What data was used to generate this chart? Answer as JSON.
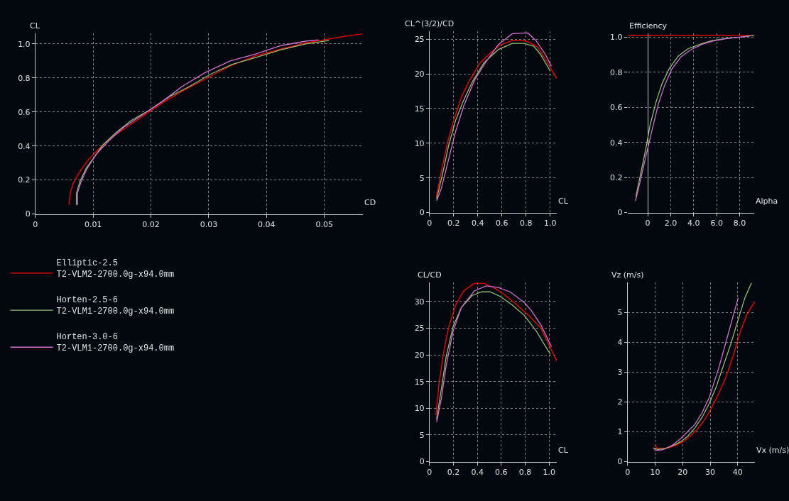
{
  "chart_data": [
    {
      "type": "line",
      "xlabel": "CD",
      "ylabel": "CL",
      "xlim": [
        0,
        0.0567
      ],
      "ylim": [
        0,
        1.06
      ],
      "xticks": [
        0,
        0.01,
        0.02,
        0.03,
        0.04,
        0.05
      ],
      "yticks": [
        0,
        0.2,
        0.4,
        0.6,
        0.8,
        {
          "value": 1.0,
          "label": "1.0"
        }
      ],
      "grid": true,
      "legend": "bottom",
      "series": [
        {
          "name": "Elliptic-2.5\nT2-VLM2-2700.0g-x94.0mm",
          "color": "#ff0000",
          "x": [
            0.00582,
            0.006,
            0.0066,
            0.0079,
            0.0092,
            0.0109,
            0.0131,
            0.0158,
            0.0188,
            0.0223,
            0.0258,
            0.0298,
            0.0337,
            0.0381,
            0.0425,
            0.0468,
            0.05,
            0.0534,
            0.0567
          ],
          "values": [
            0.053,
            0.12,
            0.185,
            0.26,
            0.32,
            0.38,
            0.45,
            0.51,
            0.58,
            0.66,
            0.73,
            0.8,
            0.87,
            0.93,
            0.97,
            1.006,
            1.024,
            1.044,
            1.06
          ]
        },
        {
          "name": "Horten-2.5-6\nT2-VLM1-2700.0g-x94.0mm",
          "color": "#90c070",
          "x": [
            0.0071,
            0.0071,
            0.0077,
            0.0088,
            0.0101,
            0.0118,
            0.014,
            0.0166,
            0.0197,
            0.0232,
            0.0267,
            0.0302,
            0.0341,
            0.0381,
            0.0425,
            0.0468,
            0.0508
          ],
          "values": [
            0.053,
            0.12,
            0.19,
            0.27,
            0.33,
            0.41,
            0.48,
            0.55,
            0.61,
            0.69,
            0.75,
            0.82,
            0.88,
            0.92,
            0.965,
            1.0,
            1.02
          ]
        },
        {
          "name": "Horten-3.0-6\nT2-VLM1-2700.0g-x94.0mm",
          "color": "#d070d0",
          "x": [
            0.0073,
            0.0073,
            0.0079,
            0.009,
            0.0105,
            0.0127,
            0.0153,
            0.0184,
            0.0219,
            0.0254,
            0.0293,
            0.0337,
            0.0381,
            0.0425,
            0.0468,
            0.049
          ],
          "values": [
            0.053,
            0.126,
            0.19,
            0.27,
            0.35,
            0.43,
            0.51,
            0.58,
            0.66,
            0.75,
            0.83,
            0.9,
            0.94,
            0.99,
            1.016,
            1.024
          ]
        }
      ]
    },
    {
      "type": "line",
      "xlabel": "CL",
      "ylabel": "CL^(3/2)/CD",
      "xlim": [
        0,
        1.055
      ],
      "ylim": [
        0,
        26.2
      ],
      "xticks": [
        0,
        0.2,
        0.4,
        0.6,
        0.8,
        {
          "value": 1.0,
          "label": "1.0"
        }
      ],
      "yticks": [
        0,
        5,
        10,
        15,
        20,
        25
      ],
      "grid": true,
      "series": [
        {
          "color": "#ff0000",
          "x": [
            0.055,
            0.098,
            0.147,
            0.2,
            0.265,
            0.333,
            0.42,
            0.51,
            0.59,
            0.686,
            0.784,
            0.843,
            0.9,
            0.98,
            1.055
          ],
          "values": [
            2.2,
            5.9,
            10.0,
            13.3,
            16.7,
            19.1,
            21.6,
            23.1,
            24.2,
            24.8,
            24.8,
            24.4,
            23.8,
            21.5,
            19.3
          ]
        },
        {
          "color": "#90c070",
          "x": [
            0.059,
            0.108,
            0.157,
            0.216,
            0.275,
            0.353,
            0.451,
            0.569,
            0.686,
            0.784,
            0.863,
            0.92,
            1.0
          ],
          "values": [
            1.9,
            5.6,
            9.6,
            13.3,
            15.9,
            18.8,
            21.6,
            23.5,
            24.4,
            24.4,
            24.0,
            22.8,
            20.4
          ]
        },
        {
          "color": "#d070d0",
          "x": [
            0.059,
            0.098,
            0.147,
            0.216,
            0.284,
            0.373,
            0.451,
            0.569,
            0.686,
            0.814,
            0.882,
            0.96,
            1.01
          ],
          "values": [
            1.7,
            3.5,
            6.9,
            11.7,
            15.4,
            19.1,
            21.3,
            24.2,
            25.8,
            25.9,
            24.8,
            22.8,
            21.1
          ]
        }
      ]
    },
    {
      "type": "line",
      "xlabel": "Alpha",
      "ylabel": "Efficiency",
      "xlim": [
        -1.75,
        9.28
      ],
      "ylim": [
        0,
        1.02
      ],
      "xticks": [
        0,
        {
          "value": 2,
          "label": "2.0"
        },
        {
          "value": 4,
          "label": "4.0"
        },
        {
          "value": 6,
          "label": "6.0"
        },
        {
          "value": 8,
          "label": "8.0"
        }
      ],
      "yticks": [
        0,
        0.2,
        0.4,
        0.6,
        0.8,
        {
          "value": 1.0,
          "label": "1.0"
        }
      ],
      "grid": true,
      "series": [
        {
          "color": "#ff0000",
          "x": [
            -1.75,
            0,
            2,
            4,
            6,
            8,
            9.0
          ],
          "values": [
            1.01,
            1.01,
            1.01,
            1.01,
            1.01,
            1.01,
            1.01
          ]
        },
        {
          "color": "#90c070",
          "x": [
            -1.03,
            -0.62,
            -0.21,
            0.21,
            0.72,
            1.24,
            1.86,
            2.68,
            3.5,
            4.54,
            5.57,
            6.8,
            8.04,
            9.28
          ],
          "values": [
            0.093,
            0.22,
            0.35,
            0.5,
            0.63,
            0.735,
            0.82,
            0.894,
            0.934,
            0.96,
            0.98,
            0.993,
            1.0,
            1.01
          ]
        },
        {
          "color": "#d070d0",
          "x": [
            -1.07,
            -0.62,
            -0.1,
            0.41,
            0.93,
            1.44,
            2.06,
            2.89,
            3.71,
            4.74,
            5.77,
            7.0,
            8.87
          ],
          "values": [
            0.066,
            0.19,
            0.34,
            0.48,
            0.62,
            0.72,
            0.815,
            0.887,
            0.927,
            0.96,
            0.98,
            0.993,
            1.007
          ]
        }
      ]
    },
    {
      "type": "line",
      "xlabel": "CL",
      "ylabel": "CL/CD",
      "xlim": [
        0,
        1.065
      ],
      "ylim": [
        0,
        33.5
      ],
      "xticks": [
        0,
        0.2,
        0.4,
        0.6,
        0.8,
        {
          "value": 1.0,
          "label": "1.0"
        }
      ],
      "yticks": [
        0,
        5,
        10,
        15,
        20,
        25,
        30
      ],
      "grid": true,
      "series": [
        {
          "color": "#ff0000",
          "x": [
            0.053,
            0.079,
            0.119,
            0.158,
            0.218,
            0.287,
            0.376,
            0.455,
            0.535,
            0.614,
            0.733,
            0.851,
            0.931,
            1.065
          ],
          "values": [
            8.7,
            14.5,
            20.6,
            25.0,
            29.3,
            32.0,
            33.4,
            33.4,
            32.6,
            31.5,
            29.3,
            26.9,
            25.0,
            18.8
          ]
        },
        {
          "color": "#90c070",
          "x": [
            0.059,
            0.099,
            0.139,
            0.198,
            0.267,
            0.356,
            0.436,
            0.505,
            0.594,
            0.693,
            0.792,
            0.891,
            1.01
          ],
          "values": [
            7.9,
            13.6,
            19.7,
            25.4,
            28.9,
            31.1,
            31.8,
            31.8,
            30.9,
            29.3,
            27.4,
            24.5,
            20.1
          ]
        },
        {
          "color": "#d070d0",
          "x": [
            0.059,
            0.099,
            0.139,
            0.198,
            0.267,
            0.376,
            0.475,
            0.574,
            0.673,
            0.792,
            0.851,
            0.931,
            1.02
          ],
          "values": [
            7.4,
            11.8,
            18.0,
            24.5,
            28.9,
            32.0,
            32.9,
            32.6,
            31.8,
            29.8,
            28.3,
            25.6,
            21.5
          ]
        }
      ]
    },
    {
      "type": "line",
      "xlabel": "Vx (m/s)",
      "ylabel": "Vz (m/s)",
      "xlim": [
        0,
        46.3
      ],
      "ylim": [
        0,
        6.0
      ],
      "xticks": [
        0,
        10,
        20,
        30,
        40
      ],
      "yticks": [
        0,
        1,
        2,
        3,
        4,
        5
      ],
      "grid": true,
      "series": [
        {
          "color": "#ff0000",
          "x": [
            10.06,
            10.6,
            11.6,
            15.0,
            17.6,
            20.2,
            22.8,
            25.4,
            28.0,
            30.5,
            33.1,
            35.7,
            38.3,
            40.8,
            43.4,
            46.3
          ],
          "values": [
            0.55,
            0.46,
            0.43,
            0.46,
            0.55,
            0.67,
            0.86,
            1.1,
            1.41,
            1.81,
            2.28,
            2.83,
            3.53,
            4.32,
            4.95,
            5.38
          ]
        },
        {
          "color": "#90c070",
          "x": [
            9.7,
            10.7,
            13.3,
            16.8,
            19.3,
            21.9,
            24.5,
            27.1,
            29.7,
            32.2,
            34.8,
            37.4,
            40.0,
            42.6,
            45.0
          ],
          "values": [
            0.46,
            0.41,
            0.43,
            0.55,
            0.67,
            0.86,
            1.14,
            1.49,
            1.96,
            2.51,
            3.22,
            3.92,
            4.71,
            5.49,
            6.0
          ]
        },
        {
          "color": "#d070d0",
          "x": [
            9.3,
            10.1,
            12.5,
            15.9,
            18.5,
            21.1,
            24.5,
            27.1,
            29.7,
            33.1,
            35.7,
            38.3,
            40.2
          ],
          "values": [
            0.47,
            0.38,
            0.39,
            0.53,
            0.71,
            0.94,
            1.26,
            1.65,
            2.16,
            3.14,
            4.0,
            4.87,
            5.49
          ]
        }
      ]
    }
  ]
}
